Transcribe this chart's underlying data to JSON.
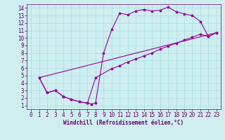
{
  "xlabel": "Windchill (Refroidissement éolien,°C)",
  "bg_color": "#ceeef0",
  "grid_color": "#a8dde0",
  "line_color": "#990099",
  "spine_color": "#660066",
  "xlim": [
    -0.5,
    23.5
  ],
  "ylim": [
    0.5,
    14.5
  ],
  "xticks": [
    0,
    1,
    2,
    3,
    4,
    5,
    6,
    7,
    8,
    9,
    10,
    11,
    12,
    13,
    14,
    15,
    16,
    17,
    18,
    19,
    20,
    21,
    22,
    23
  ],
  "yticks": [
    1,
    2,
    3,
    4,
    5,
    6,
    7,
    8,
    9,
    10,
    11,
    12,
    13,
    14
  ],
  "curve1_x": [
    1,
    2,
    3,
    4,
    5,
    6,
    7,
    7.5,
    8,
    9,
    10,
    11,
    12,
    13,
    14,
    15,
    16,
    17,
    18,
    19,
    20,
    21,
    22,
    23
  ],
  "curve1_y": [
    4.7,
    2.7,
    3.0,
    2.2,
    1.8,
    1.5,
    1.3,
    1.2,
    1.3,
    8.0,
    11.1,
    13.3,
    13.1,
    13.6,
    13.8,
    13.6,
    13.7,
    14.1,
    13.5,
    13.2,
    13.0,
    12.2,
    10.2,
    10.7
  ],
  "curve2_x": [
    1,
    2,
    3,
    4,
    5,
    6,
    7,
    8,
    10,
    11,
    12,
    13,
    14,
    15,
    16,
    17,
    18,
    19,
    20,
    21,
    22,
    23
  ],
  "curve2_y": [
    4.7,
    2.7,
    3.0,
    2.2,
    1.8,
    1.5,
    1.3,
    4.7,
    5.9,
    6.3,
    6.8,
    7.2,
    7.6,
    8.0,
    8.5,
    8.9,
    9.3,
    9.7,
    10.1,
    10.5,
    10.2,
    10.7
  ],
  "curve3_x": [
    1,
    23
  ],
  "curve3_y": [
    4.7,
    10.7
  ],
  "figsize": [
    3.2,
    2.0
  ],
  "dpi": 100,
  "tick_fontsize": 5.5,
  "xlabel_fontsize": 5.5
}
